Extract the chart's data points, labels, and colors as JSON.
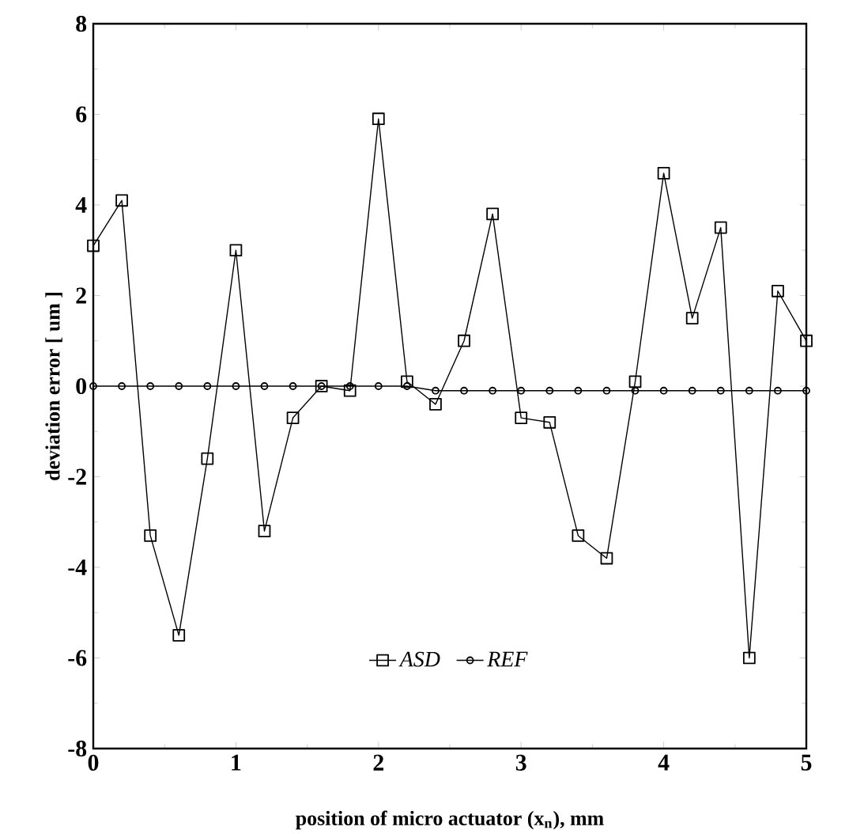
{
  "chart_data": {
    "type": "line",
    "xlabel": "position of micro actuator (x$_{n}$), mm",
    "ylabel": "deviation error [ um ]",
    "x": [
      0,
      0.2,
      0.4,
      0.6,
      0.8,
      1.0,
      1.2,
      1.4,
      1.6,
      1.8,
      2.0,
      2.2,
      2.4,
      2.6,
      2.8,
      3.0,
      3.2,
      3.4,
      3.6,
      3.8,
      4.0,
      4.2,
      4.4,
      4.6,
      4.8,
      5.0
    ],
    "series": [
      {
        "name": "*ASD*",
        "color": "#000000",
        "marker": "square",
        "values": [
          3.1,
          4.1,
          -3.3,
          -5.5,
          -1.6,
          3.0,
          -3.2,
          -0.7,
          0,
          -0.1,
          5.9,
          0.1,
          -0.4,
          1.0,
          3.8,
          -0.7,
          -0.8,
          -3.3,
          -3.8,
          0.1,
          4.7,
          1.5,
          3.5,
          -6.0,
          2.1,
          1.0
        ]
      },
      {
        "name": "*REF*",
        "color": "#000000",
        "marker": "circle",
        "values": [
          0,
          0,
          0,
          0,
          0,
          0,
          0,
          0,
          0,
          0,
          0,
          0,
          -0.1,
          -0.1,
          -0.1,
          -0.1,
          -0.1,
          -0.1,
          -0.1,
          -0.1,
          -0.1,
          -0.1,
          -0.1,
          -0.1,
          -0.1,
          -0.1
        ]
      }
    ],
    "xlim": [
      0,
      5
    ],
    "xticks": [
      0,
      1,
      2,
      3,
      4,
      5
    ],
    "ylim": [
      -8,
      8
    ],
    "yticks": [
      -8,
      -6,
      -4,
      -2,
      0,
      2,
      4,
      6,
      8
    ],
    "legend": "bottom",
    "grid": false,
    "line_style": "solid"
  }
}
